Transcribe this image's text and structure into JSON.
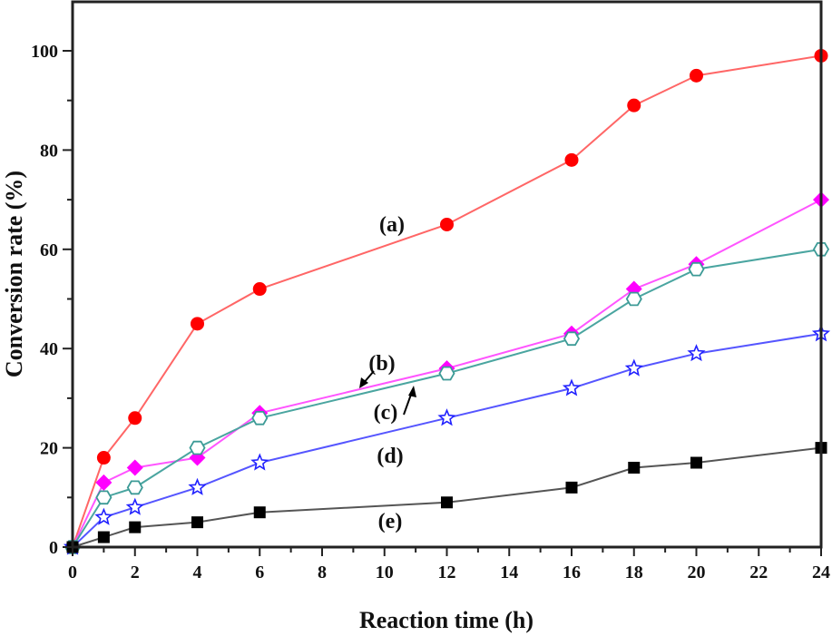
{
  "chart_data": {
    "type": "line",
    "title": "",
    "xlabel": "Reaction time (h)",
    "ylabel": "Conversion rate (%)",
    "xlim": [
      0,
      24
    ],
    "ylim": [
      0,
      110
    ],
    "grid": false,
    "x": [
      0,
      1,
      2,
      4,
      6,
      12,
      16,
      18,
      20,
      24
    ],
    "x_ticks": [
      0,
      2,
      4,
      6,
      8,
      10,
      12,
      14,
      16,
      18,
      20,
      22,
      24
    ],
    "x_tick_labels": [
      "0",
      "2",
      "4",
      "6",
      "8",
      "10",
      "12",
      "14",
      "16",
      "18",
      "20",
      "22",
      "24"
    ],
    "y_ticks": [
      0,
      20,
      40,
      60,
      80,
      100
    ],
    "y_tick_labels": [
      "0",
      "20",
      "40",
      "60",
      "80",
      "100"
    ],
    "series": [
      {
        "name": "(a)",
        "marker": "filled-circle",
        "color": "#ff0000",
        "line_color": "#ff6666",
        "values": [
          0,
          18,
          26,
          45,
          52,
          65,
          78,
          89,
          95,
          99
        ]
      },
      {
        "name": "(b)",
        "marker": "filled-diamond",
        "color": "#ff00ff",
        "line_color": "#ff55ff",
        "values": [
          0,
          13,
          16,
          18,
          27,
          36,
          43,
          52,
          57,
          70
        ]
      },
      {
        "name": "(c)",
        "marker": "open-hexagon",
        "color": "#3c9a96",
        "line_color": "#4aa5a0",
        "values": [
          0,
          10,
          12,
          20,
          26,
          35,
          42,
          50,
          56,
          60
        ]
      },
      {
        "name": "(d)",
        "marker": "open-star",
        "color": "#2222ff",
        "line_color": "#5555ff",
        "values": [
          0,
          6,
          8,
          12,
          17,
          26,
          32,
          36,
          39,
          43
        ]
      },
      {
        "name": "(e)",
        "marker": "filled-square",
        "color": "#000000",
        "line_color": "#555555",
        "values": [
          0,
          2,
          4,
          5,
          7,
          9,
          12,
          16,
          17,
          20
        ]
      }
    ],
    "annotations": [
      {
        "text": "(a)",
        "series": "(a)"
      },
      {
        "text": "(b)",
        "series": "(b)",
        "arrow": true
      },
      {
        "text": "(c)",
        "series": "(c)",
        "arrow": true
      },
      {
        "text": "(d)",
        "series": "(d)"
      },
      {
        "text": "(e)",
        "series": "(e)"
      }
    ]
  }
}
